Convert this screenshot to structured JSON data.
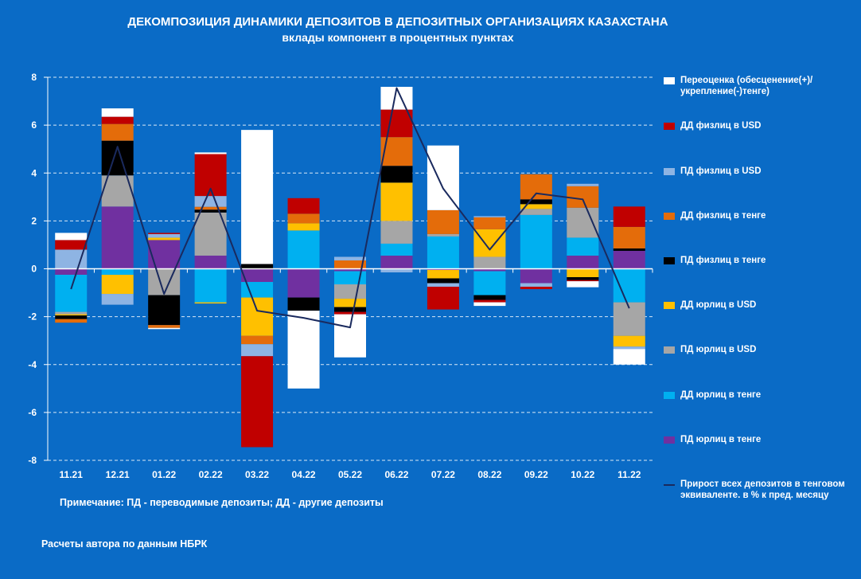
{
  "chart_data": {
    "type": "bar",
    "stacked": true,
    "title": "ДЕКОМПОЗИЦИЯ ДИНАМИКИ ДЕПОЗИТОВ В ДЕПОЗИТНЫХ ОРГАНИЗАЦИЯХ КАЗАХСТАНА",
    "subtitle": "вклады компонент в процентных пунктах",
    "categories": [
      "11.21",
      "12.21",
      "01.22",
      "02.22",
      "03.22",
      "04.22",
      "05.22",
      "06.22",
      "07.22",
      "08.22",
      "09.22",
      "10.22",
      "11.22"
    ],
    "ylim": [
      -8,
      8
    ],
    "yticks": [
      "-8",
      "-6",
      "-4",
      "-2",
      "0",
      "2",
      "4",
      "6",
      "8"
    ],
    "grid": true,
    "legend_position": "right",
    "series": [
      {
        "name": "ПД юрлиц в тенге",
        "color": "#7030a0",
        "values": [
          -0.25,
          2.6,
          1.2,
          0.55,
          -0.55,
          -1.2,
          -0.1,
          0.55,
          -0.05,
          -0.1,
          -0.6,
          0.55,
          0.75
        ]
      },
      {
        "name": "ДД юрлиц в тенге",
        "color": "#00b0f0",
        "values": [
          -1.55,
          -0.25,
          0.0,
          -1.4,
          -0.65,
          1.6,
          -0.55,
          0.5,
          1.35,
          -1.0,
          2.25,
          0.75,
          -1.4
        ]
      },
      {
        "name": "ПД юрлиц в USD",
        "color": "#a6a6a6",
        "values": [
          -0.1,
          1.3,
          -1.1,
          1.8,
          0.0,
          0.0,
          -0.6,
          0.95,
          0.1,
          0.5,
          0.25,
          1.25,
          -1.4
        ]
      },
      {
        "name": "ДД юрлиц в USD",
        "color": "#ffc000",
        "values": [
          -0.05,
          -0.8,
          0.1,
          -0.05,
          -1.6,
          0.3,
          -0.35,
          1.6,
          -0.35,
          1.15,
          0.2,
          -0.35,
          -0.45
        ]
      },
      {
        "name": "ПД физлиц в тенге",
        "color": "#000000",
        "values": [
          -0.15,
          1.45,
          -1.25,
          0.12,
          0.2,
          -0.55,
          -0.2,
          0.7,
          -0.2,
          -0.2,
          0.2,
          -0.12,
          0.1
        ]
      },
      {
        "name": "ДД физлиц в тенге",
        "color": "#e46c0a",
        "values": [
          -0.15,
          0.7,
          -0.12,
          0.12,
          -0.35,
          0.4,
          0.35,
          1.2,
          1.0,
          0.5,
          1.05,
          0.9,
          0.9
        ]
      },
      {
        "name": "ПД физлиц в USD",
        "color": "#8eb4e3",
        "values": [
          0.8,
          -0.45,
          0.15,
          0.45,
          -0.5,
          0.0,
          0.15,
          -0.15,
          -0.15,
          0.05,
          -0.15,
          0.1,
          -0.1
        ]
      },
      {
        "name": "ДД физлиц в USD",
        "color": "#c00000",
        "values": [
          0.4,
          0.3,
          0.05,
          1.75,
          -3.8,
          0.65,
          -0.1,
          1.15,
          -0.95,
          -0.1,
          -0.1,
          -0.05,
          0.85
        ]
      },
      {
        "name": "Переоценка (обесценение(+)/укрепление(-)тенге)",
        "color": "#ffffff",
        "values": [
          0.3,
          0.35,
          -0.05,
          0.07,
          5.6,
          -3.25,
          -1.8,
          0.95,
          2.7,
          -0.15,
          0.0,
          -0.25,
          -0.65
        ]
      }
    ],
    "line_series": {
      "name": "Прирост всех депозитов в тенговом эквиваленте. в % к пред. месяцу",
      "color": "#1a2a5e",
      "values": [
        -0.85,
        5.1,
        -1.05,
        3.35,
        -1.75,
        -2.05,
        -2.45,
        7.55,
        3.35,
        0.8,
        3.15,
        2.9,
        -1.65
      ]
    }
  },
  "legend": [
    {
      "label": "Переоценка (обесценение(+)/укрепление(-)тенге)",
      "color": "#ffffff",
      "kind": "bar"
    },
    {
      "label": "ДД физлиц в USD",
      "color": "#c00000",
      "kind": "bar"
    },
    {
      "label": "ПД физлиц в USD",
      "color": "#8eb4e3",
      "kind": "bar"
    },
    {
      "label": "ДД физлиц в тенге",
      "color": "#e46c0a",
      "kind": "bar"
    },
    {
      "label": "ПД физлиц в тенге",
      "color": "#000000",
      "kind": "bar"
    },
    {
      "label": "ДД юрлиц в USD",
      "color": "#ffc000",
      "kind": "bar"
    },
    {
      "label": "ПД юрлиц в USD",
      "color": "#a6a6a6",
      "kind": "bar"
    },
    {
      "label": "ДД юрлиц в тенге",
      "color": "#00b0f0",
      "kind": "bar"
    },
    {
      "label": "ПД юрлиц в тенге",
      "color": "#7030a0",
      "kind": "bar"
    },
    {
      "label": "Прирост всех депозитов в тенговом эквиваленте. в % к пред. месяцу",
      "color": "#1a2a5e",
      "kind": "line"
    }
  ],
  "notes": {
    "abbrev": "Примечание: ПД - переводимые депозиты; ДД - другие депозиты",
    "source": "Расчеты автора по данным НБРК"
  },
  "colors": {
    "background": "#0a6bc6",
    "gridline": "#ffffff",
    "text": "#ffffff"
  }
}
